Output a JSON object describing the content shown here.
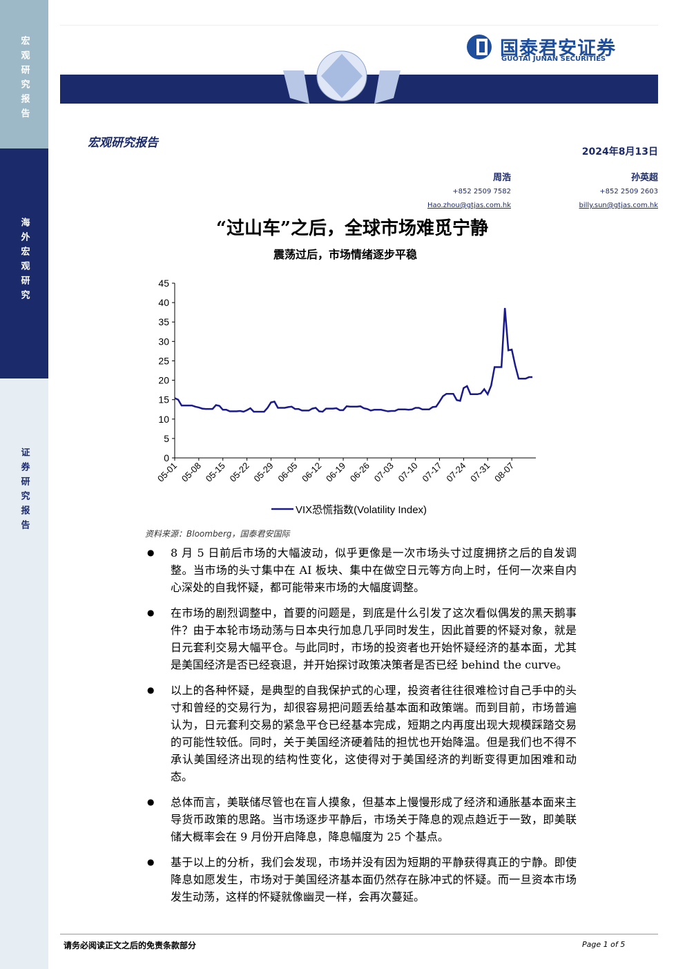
{
  "sidebar": [
    "宏观研究报告",
    "海外宏观研究",
    "证券研究报告"
  ],
  "logo": {
    "name": "国泰君安证券",
    "english": "GUOTAI JUNAN SECURITIES"
  },
  "report_type": "宏观研究报告",
  "date": "2024年8月13日",
  "authors": [
    {
      "name": "周浩",
      "phone": "+852 2509 7582",
      "email": "Hao.zhou@gtjas.com.hk"
    },
    {
      "name": "孙英超",
      "phone": "+852 2509 2603",
      "email": "billy.sun@gtjas.com.hk"
    }
  ],
  "title": "“过山车”之后，全球市场难觅宁静",
  "subtitle": "震荡过后，市场情绪逐步平稳",
  "chart_data": {
    "type": "line",
    "categories": [
      "05-01",
      null,
      null,
      null,
      null,
      null,
      null,
      "05-08",
      null,
      null,
      null,
      null,
      null,
      null,
      "05-15",
      null,
      null,
      null,
      null,
      null,
      null,
      "05-22",
      null,
      null,
      null,
      null,
      null,
      null,
      "05-29",
      null,
      null,
      null,
      null,
      null,
      null,
      "06-05",
      null,
      null,
      null,
      null,
      null,
      null,
      "06-12",
      null,
      null,
      null,
      null,
      null,
      null,
      "06-19",
      null,
      null,
      null,
      null,
      null,
      null,
      "06-26",
      null,
      null,
      null,
      null,
      null,
      null,
      "07-03",
      null,
      null,
      null,
      null,
      null,
      null,
      "07-10",
      null,
      null,
      null,
      null,
      null,
      null,
      "07-17",
      null,
      null,
      null,
      null,
      null,
      null,
      "07-24",
      null,
      null,
      null,
      null,
      null,
      null,
      "07-31",
      null,
      null,
      null,
      null,
      null,
      null,
      "08-07",
      null,
      null,
      null,
      null,
      null,
      null
    ],
    "series": [
      {
        "name": "VIX恐慌指数(Volatility Index)",
        "color": "#1a1a8c",
        "values": [
          15.4,
          15.0,
          13.5,
          13.5,
          13.5,
          13.5,
          13.2,
          13.0,
          12.7,
          12.6,
          12.6,
          12.6,
          13.6,
          13.4,
          12.4,
          12.4,
          12.0,
          12.0,
          12.0,
          12.1,
          11.9,
          12.3,
          12.8,
          11.9,
          11.9,
          11.9,
          11.9,
          12.9,
          14.3,
          14.5,
          12.9,
          12.9,
          12.9,
          13.1,
          13.2,
          12.6,
          12.6,
          12.2,
          12.2,
          12.2,
          12.7,
          12.9,
          12.0,
          11.9,
          12.7,
          12.7,
          12.7,
          12.8,
          12.3,
          12.3,
          13.3,
          13.2,
          13.2,
          13.2,
          13.3,
          12.8,
          12.6,
          12.2,
          12.4,
          12.4,
          12.4,
          12.2,
          12.0,
          12.1,
          12.1,
          12.5,
          12.5,
          12.5,
          12.4,
          12.5,
          12.9,
          12.9,
          12.5,
          12.5,
          12.5,
          13.1,
          13.2,
          14.5,
          15.9,
          16.5,
          16.5,
          16.5,
          14.9,
          14.7,
          18.0,
          18.5,
          16.4,
          16.4,
          16.4,
          16.6,
          17.7,
          16.4,
          18.6,
          23.4,
          23.4,
          23.4,
          38.6,
          27.7,
          27.9,
          23.8,
          20.4,
          20.4,
          20.4,
          20.8,
          20.8
        ]
      }
    ],
    "ylim": [
      0,
      45
    ],
    "yticks": [
      0,
      5,
      10,
      15,
      20,
      25,
      30,
      35,
      40,
      45
    ]
  },
  "source": "资料来源：Bloomberg，国泰君安国际",
  "bullets": [
    "8 月 5 日前后市场的大幅波动，似乎更像是一次市场头寸过度拥挤之后的自发调整。当市场的头寸集中在 AI 板块、集中在做空日元等方向上时，任何一次来自内心深处的自我怀疑，都可能带来市场的大幅度调整。",
    "在市场的剧烈调整中，首要的问题是，到底是什么引发了这次看似偶发的黑天鹅事件？由于本轮市场动荡与日本央行加息几乎同时发生，因此首要的怀疑对象，就是日元套利交易大幅平仓。与此同时，市场的投资者也开始怀疑经济的基本面，尤其是美国经济是否已经衰退，并开始探讨政策决策者是否已经 behind the curve。",
    "以上的各种怀疑，是典型的自我保护式的心理，投资者往往很难检讨自己手中的头寸和曾经的交易行为，却很容易把问题丢给基本面和政策端。而到目前，市场普遍认为，日元套利交易的紧急平仓已经基本完成，短期之内再度出现大规模踩踏交易的可能性较低。同时，关于美国经济硬着陆的担忧也开始降温。但是我们也不得不承认美国经济出现的结构性变化，这使得对于美国经济的判断变得更加困难和动态。",
    "总体而言，美联储尽管也在盲人摸象，但基本上慢慢形成了经济和通胀基本面来主导货币政策的思路。当市场逐步平静后，市场关于降息的观点趋近于一致，即美联储大概率会在 9 月份开启降息，降息幅度为 25 个基点。",
    "基于以上的分析，我们会发现，市场并没有因为短期的平静获得真正的宁静。即使降息如愿发生，市场对于美国经济基本面仍然存在脉冲式的怀疑。而一旦资本市场发生动荡，这样的怀疑就像幽灵一样，会再次蔓延。"
  ],
  "footer": {
    "disclaimer": "请务必阅读正文之后的免责条款部分",
    "page": "Page 1 of 5"
  }
}
